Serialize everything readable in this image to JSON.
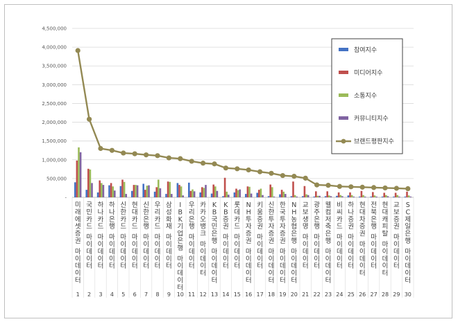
{
  "chart_data": {
    "type": "bar",
    "title": "",
    "xlabel": "",
    "ylabel": "",
    "ylim": [
      0,
      4500000
    ],
    "yticks": [
      0,
      500000,
      1000000,
      1500000,
      2000000,
      2500000,
      3000000,
      3500000,
      4000000,
      4500000
    ],
    "ytick_labels": [
      "-",
      "500,000",
      "1,000,000",
      "1,500,000",
      "2,000,000",
      "2,500,000",
      "3,000,000",
      "3,500,000",
      "4,000,000",
      "4,500,000"
    ],
    "grid": true,
    "legend_position": "right",
    "index_labels": [
      "1",
      "2",
      "3",
      "4",
      "5",
      "6",
      "7",
      "8",
      "9",
      "10",
      "11",
      "12",
      "13",
      "14",
      "15",
      "16",
      "17",
      "18",
      "19",
      "20",
      "21",
      "22",
      "23",
      "24",
      "25",
      "26",
      "27",
      "28",
      "29",
      "30"
    ],
    "categories": [
      "미래에셋증권 마이데이터",
      "국민카드 마이데이터",
      "하나카드 마이데이터",
      "하나은행 마이데이터",
      "신한카드 마이데이터",
      "현대카드 마이데이터",
      "신한은행 마이데이터",
      "우리카드 마이데이터",
      "삼성화재 마이데이터",
      "IBK기업은행 마이데이터",
      "우리은행 마이데이터",
      "카카오뱅크 마이데이터",
      "KB국민은행 마이데이터",
      "KB증권 마이데이터",
      "롯데카드 마이데이터",
      "NH투자증권 마이데이터",
      "키움증권 마이데이터",
      "신한투자증권 마이데이터",
      "한국투자증권 마이데이터",
      "NH농협은행 마이데이터",
      "교보생명 마이데이터",
      "광주은행 마이데이터",
      "웰컴저축은행 마이데이터",
      "비씨카드 마이데이터",
      "하나증권 마이데이터",
      "현대차증권 마이데이터",
      "전북은행 마이데이터",
      "현대캐피탈 마이데이터",
      "교보증권 마이데이터",
      "SC제일은행 마이데이터"
    ],
    "series": [
      {
        "name": "참여지수",
        "kind": "bar",
        "color": "#4472c4",
        "values": [
          400000,
          200000,
          130000,
          320000,
          300000,
          170000,
          360000,
          150000,
          90000,
          380000,
          390000,
          130000,
          100000,
          30000,
          130000,
          90000,
          120000,
          30000,
          80000,
          30000,
          30000,
          20000,
          30000,
          40000,
          50000,
          20000,
          20000,
          20000,
          20000,
          20000
        ]
      },
      {
        "name": "미디어지수",
        "kind": "bar",
        "color": "#c0504d",
        "values": [
          980000,
          760000,
          450000,
          380000,
          470000,
          330000,
          200000,
          270000,
          420000,
          330000,
          170000,
          270000,
          340000,
          520000,
          230000,
          290000,
          200000,
          340000,
          200000,
          420000,
          300000,
          160000,
          160000,
          130000,
          130000,
          170000,
          140000,
          120000,
          120000,
          150000
        ]
      },
      {
        "name": "소통지수",
        "kind": "bar",
        "color": "#9bbb59",
        "values": [
          1330000,
          740000,
          380000,
          290000,
          410000,
          330000,
          310000,
          470000,
          410000,
          290000,
          210000,
          250000,
          290000,
          150000,
          190000,
          280000,
          230000,
          270000,
          150000,
          60000,
          80000,
          40000,
          50000,
          60000,
          60000,
          60000,
          50000,
          60000,
          60000,
          50000
        ]
      },
      {
        "name": "커뮤니티지수",
        "kind": "bar",
        "color": "#8064a2",
        "values": [
          1200000,
          380000,
          330000,
          180000,
          90000,
          320000,
          320000,
          240000,
          90000,
          50000,
          160000,
          330000,
          170000,
          70000,
          210000,
          100000,
          60000,
          20000,
          90000,
          20000,
          60000,
          40000,
          30000,
          30000,
          20000,
          20000,
          20000,
          30000,
          20000,
          20000
        ]
      },
      {
        "name": "브랜드평판지수",
        "kind": "line",
        "color": "#938953",
        "values": [
          3910000,
          2080000,
          1300000,
          1250000,
          1180000,
          1160000,
          1130000,
          1110000,
          1050000,
          1030000,
          960000,
          910000,
          890000,
          780000,
          760000,
          730000,
          680000,
          640000,
          580000,
          560000,
          510000,
          330000,
          320000,
          290000,
          280000,
          270000,
          260000,
          250000,
          240000,
          230000
        ]
      }
    ]
  }
}
